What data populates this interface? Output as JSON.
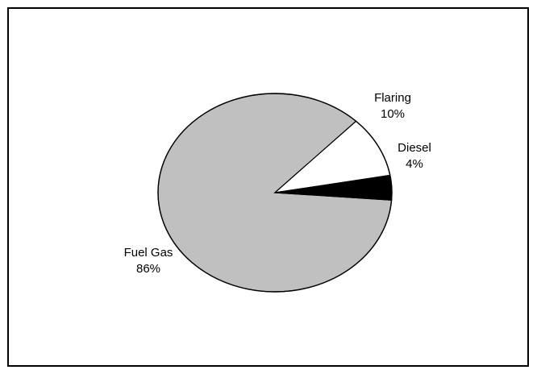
{
  "chart_data": {
    "type": "pie",
    "title": "",
    "slices": [
      {
        "label": "Fuel Gas",
        "percent_label": "86%",
        "value": 86,
        "color": "#C0C0C0"
      },
      {
        "label": "Flaring",
        "percent_label": "10%",
        "value": 10,
        "color": "#FFFFFF"
      },
      {
        "label": "Diesel",
        "percent_label": "4%",
        "value": 4,
        "color": "#000000"
      }
    ],
    "legend": "none"
  }
}
